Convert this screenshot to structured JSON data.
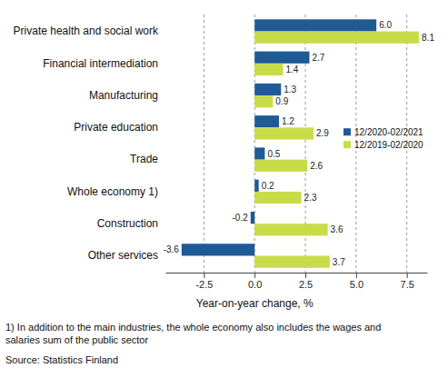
{
  "chart_data": {
    "type": "bar",
    "orientation": "horizontal",
    "categories": [
      "Private health and social work",
      "Financial intermediation",
      "Manufacturing",
      "Private education",
      "Trade",
      "Whole economy 1)",
      "Construction",
      "Other services"
    ],
    "series": [
      {
        "name": "12/2020-02/2021",
        "color": "#1f5a96",
        "values": [
          6.0,
          2.7,
          1.3,
          1.2,
          0.5,
          0.2,
          -0.2,
          -3.6
        ],
        "value_labels": [
          "6.0",
          "2.7",
          "1.3",
          "1.2",
          "0.5",
          "0.2",
          "-0.2",
          "-3.6"
        ]
      },
      {
        "name": "12/2019-02/2020",
        "color": "#c8dc4a",
        "values": [
          8.1,
          1.4,
          0.9,
          2.9,
          2.6,
          2.3,
          3.6,
          3.7
        ],
        "value_labels": [
          "8.1",
          "1.4",
          "0.9",
          "2.9",
          "2.6",
          "2.3",
          "3.6",
          "3.7"
        ]
      }
    ],
    "x_label": "Year-on-year change, %",
    "xlim": [
      -4.4,
      8.5
    ],
    "xticks": [
      {
        "value": -2.5,
        "label": "-2.5"
      },
      {
        "value": 0,
        "label": "0.0"
      },
      {
        "value": 2.5,
        "label": "2.5"
      },
      {
        "value": 5,
        "label": "5.0"
      },
      {
        "value": 7.5,
        "label": "7.5"
      }
    ],
    "grid": true,
    "legend": "right",
    "data_labels": true,
    "annotations": [
      "1) In addition to the main industries, the whole economy also includes the wages and",
      "salaries sum of the public sector",
      "Source: Statistics Finland"
    ]
  }
}
